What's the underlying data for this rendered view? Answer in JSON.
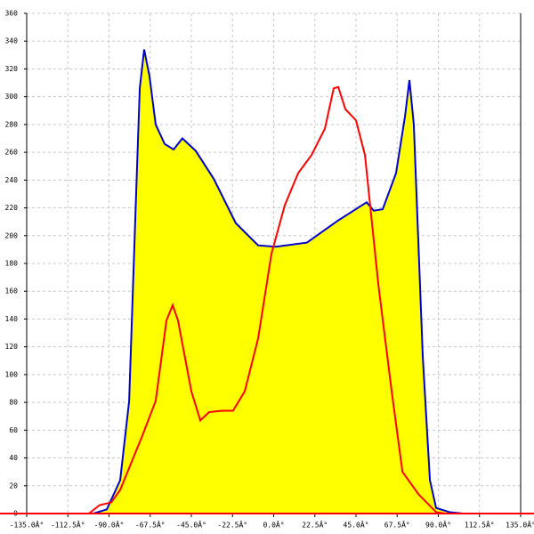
{
  "chart_data": {
    "type": "area-line",
    "xlim": [
      -135,
      135
    ],
    "ylim": [
      0,
      360
    ],
    "xticks": [
      {
        "value": -135,
        "label": "-135.0Â°"
      },
      {
        "value": -112.5,
        "label": "-112.5Â°"
      },
      {
        "value": -90,
        "label": "-90.0Â°"
      },
      {
        "value": -67.5,
        "label": "-67.5Â°"
      },
      {
        "value": -45,
        "label": "-45.0Â°"
      },
      {
        "value": -22.5,
        "label": "-22.5Â°"
      },
      {
        "value": 0,
        "label": "0.0Â°"
      },
      {
        "value": 22.5,
        "label": "22.5Â°"
      },
      {
        "value": 45,
        "label": "45.0Â°"
      },
      {
        "value": 67.5,
        "label": "67.5Â°"
      },
      {
        "value": 90,
        "label": "90.0Â°"
      },
      {
        "value": 112.5,
        "label": "112.5Â°"
      },
      {
        "value": 135,
        "label": "135.0Â°"
      }
    ],
    "yticks": [
      0,
      20,
      40,
      60,
      80,
      100,
      120,
      140,
      160,
      180,
      200,
      220,
      240,
      260,
      280,
      300,
      320,
      340,
      360
    ],
    "grid": true,
    "series": [
      {
        "kind": "area",
        "color": "#0000cc",
        "fill": "#ffff00",
        "x": [
          -98.5,
          -91.2,
          -83.9,
          -79,
          -75.7,
          -73.2,
          -70.8,
          -67.9,
          -64.5,
          -59.6,
          -54.7,
          -49.9,
          -42.6,
          -32.8,
          -20.7,
          -8.5,
          1.2,
          18.2,
          35.3,
          50.8,
          54.7,
          59.6,
          66.9,
          71.8,
          74.2,
          76.6,
          81.5,
          85.4,
          88.8,
          96.1,
          103.4
        ],
        "values": [
          0,
          3,
          24,
          81,
          210,
          306,
          334,
          315,
          280,
          266,
          262,
          270,
          261,
          241,
          209,
          193,
          192,
          195,
          211,
          224,
          218,
          219,
          245,
          286,
          312,
          280,
          113,
          24,
          4,
          1,
          0
        ]
      },
      {
        "kind": "line",
        "color": "#ff0000",
        "x": [
          -101,
          -95.2,
          -88.8,
          -83.9,
          -71.8,
          -64.5,
          -58.6,
          -55.2,
          -52.3,
          -45,
          -40.1,
          -35.3,
          -28,
          -22.2,
          -15.8,
          -8.5,
          -1.2,
          6.1,
          13.4,
          20.7,
          28,
          32.8,
          35.3,
          39.2,
          45,
          49.9,
          57.2,
          64.5,
          70.4,
          79.1,
          88.8,
          93.6
        ],
        "values": [
          0,
          6,
          8,
          17,
          56,
          81,
          139,
          150,
          139,
          88,
          67,
          73,
          74,
          74,
          88,
          126,
          187,
          222,
          245,
          258,
          277,
          306,
          307,
          291,
          283,
          258,
          165,
          88,
          30,
          14,
          1,
          0
        ]
      }
    ]
  }
}
